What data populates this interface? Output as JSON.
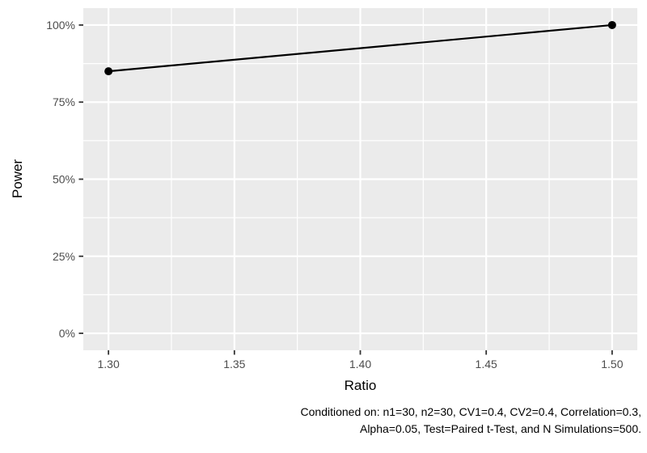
{
  "figure": {
    "xlabel": "Ratio",
    "ylabel": "Power",
    "caption_line1": "Conditioned on: n1=30, n2=30, CV1=0.4, CV2=0.4, Correlation=0.3,",
    "caption_line2": "Alpha=0.05, Test=Paired t-Test, and N Simulations=500."
  },
  "chart_data": {
    "type": "line",
    "x": [
      1.3,
      1.5
    ],
    "series": [
      {
        "name": "Power",
        "values": [
          85,
          100
        ]
      }
    ],
    "title": "",
    "xlabel": "Ratio",
    "ylabel": "Power",
    "x_ticks": [
      1.3,
      1.35,
      1.4,
      1.45,
      1.5
    ],
    "x_tick_labels": [
      "1.30",
      "1.35",
      "1.40",
      "1.45",
      "1.50"
    ],
    "x_minor_ticks": [
      1.325,
      1.375,
      1.425,
      1.475
    ],
    "y_ticks": [
      0,
      25,
      50,
      75,
      100
    ],
    "y_tick_labels": [
      "0%",
      "25%",
      "50%",
      "75%",
      "100%"
    ],
    "y_minor_ticks": [
      12.5,
      37.5,
      62.5,
      87.5
    ],
    "xlim": [
      1.29,
      1.51
    ],
    "ylim": [
      -5.5,
      105.5
    ],
    "grid": true,
    "legend": false,
    "caption": "Conditioned on: n1=30, n2=30, CV1=0.4, CV2=0.4, Correlation=0.3, Alpha=0.05, Test=Paired t-Test, and N Simulations=500."
  },
  "colors": {
    "background": "#FFFFFF",
    "panel_bg": "#EBEBEB",
    "grid": "#FFFFFF",
    "tick_mark": "#333333",
    "tick_label": "#4D4D4D",
    "line": "#000000",
    "point": "#000000",
    "text": "#000000"
  }
}
